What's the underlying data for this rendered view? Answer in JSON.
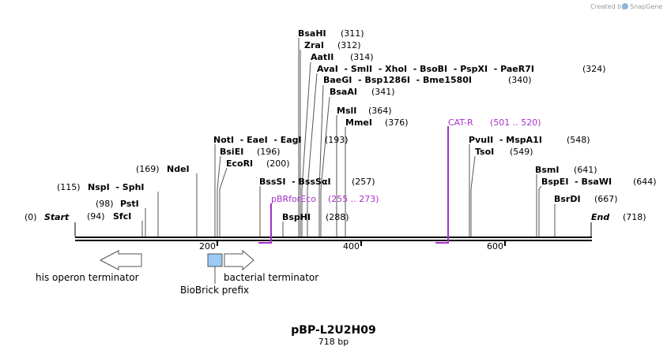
{
  "credit": {
    "text": "Created by",
    "brand": "SnapGene"
  },
  "plasmid": {
    "name": "pBP-L2U2H09",
    "size_label": "718 bp"
  },
  "ticks": [
    "200",
    "400",
    "600"
  ],
  "ends": {
    "start": "Start",
    "start_pos": "(0)",
    "end": "End",
    "end_pos": "(718)"
  },
  "sites": {
    "bsahi": {
      "name": "BsaHI",
      "pos": "(311)"
    },
    "zrai": {
      "name": "ZraI",
      "pos": "(312)"
    },
    "aatii": {
      "name": "AatII",
      "pos": "(314)"
    },
    "avai_group": {
      "name": "AvaI  - SmlI  - XhoI  - BsoBI  - PspXI  - PaeR7I",
      "pos": "(324)"
    },
    "baegi_group": {
      "name": "BaeGI  - Bsp1286I  - Bme1580I",
      "pos": "(340)"
    },
    "bsaai": {
      "name": "BsaAI",
      "pos": "(341)"
    },
    "msli": {
      "name": "MslI",
      "pos": "(364)"
    },
    "mmei": {
      "name": "MmeI",
      "pos": "(376)"
    },
    "noti_group": {
      "name": "NotI  - EaeI  - EagI",
      "pos": "(193)"
    },
    "bsiei": {
      "name": "BsiEI",
      "pos": "(196)"
    },
    "ecori": {
      "name": "EcoRI",
      "pos": "(200)"
    },
    "ndei": {
      "name": "NdeI",
      "pos": "(169)"
    },
    "nspi_group": {
      "name": "NspI  - SphI",
      "pos": "(115)"
    },
    "psti": {
      "name": "PstI",
      "pos": "(98)"
    },
    "sfci": {
      "name": "SfcI",
      "pos": "(94)"
    },
    "bsssi_group": {
      "name": "BssSI  - BssSαI",
      "pos": "(257)"
    },
    "bsphi": {
      "name": "BspHI",
      "pos": "(288)"
    },
    "pvuii_group": {
      "name": "PvuII  - MspA1I",
      "pos": "(548)"
    },
    "tsoi": {
      "name": "TsoI",
      "pos": "(549)"
    },
    "bsmi": {
      "name": "BsmI",
      "pos": "(641)"
    },
    "bspei_group": {
      "name": "BspEI  - BsaWI",
      "pos": "(644)"
    },
    "bsrdi": {
      "name": "BsrDI",
      "pos": "(667)"
    }
  },
  "primers": {
    "cat_r": {
      "name": "CAT-R",
      "range": "(501 .. 520)"
    },
    "pbrforeco": {
      "name": "pBRforEco",
      "range": "(255 .. 273)"
    }
  },
  "features": {
    "his_terminator": "his operon terminator",
    "bacterial_terminator": "bacterial terminator",
    "biobrick_prefix": "BioBrick prefix"
  },
  "colors": {
    "primer": "#a830c8",
    "biobrick": "#9cc9f5",
    "backbone": "#000000"
  }
}
